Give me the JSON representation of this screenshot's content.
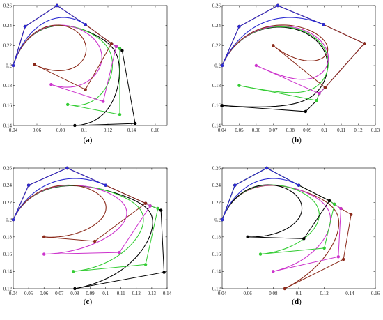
{
  "figure": {
    "captions": [
      "(a)",
      "(b)",
      "(c)",
      "(d)"
    ]
  },
  "chart_data": [
    {
      "panel": "a",
      "type": "line",
      "caption": "(a)",
      "xlim": [
        0.04,
        0.17
      ],
      "ylim": [
        0.14,
        0.26
      ],
      "xticks": [
        "0.04",
        "0.06",
        "0.08",
        "0.1",
        "0.12",
        "0.14",
        "0.16"
      ],
      "xtick_values": [
        0.04,
        0.06,
        0.08,
        0.1,
        0.12,
        0.14,
        0.16
      ],
      "yticks": [
        "0.14",
        "0.16",
        "0.18",
        "0.2",
        "0.22",
        "0.24",
        "0.26"
      ],
      "ytick_values": [
        0.14,
        0.16,
        0.18,
        0.2,
        0.22,
        0.24,
        0.26
      ],
      "series": [
        {
          "color": "#2b2bd1",
          "control": [
            [
              0.04,
              0.2
            ],
            [
              0.05,
              0.239
            ],
            [
              0.077,
              0.26
            ],
            [
              0.101,
              0.241
            ]
          ]
        },
        {
          "color": "#8b2a1a",
          "control": [
            [
              0.04,
              0.2
            ],
            [
              0.05,
              0.239
            ],
            [
              0.077,
              0.26
            ],
            [
              0.101,
              0.241
            ],
            [
              0.123,
              0.222
            ],
            [
              0.101,
              0.176
            ],
            [
              0.058,
              0.201
            ]
          ]
        },
        {
          "color": "#cc33cc",
          "control": [
            [
              0.04,
              0.2
            ],
            [
              0.05,
              0.239
            ],
            [
              0.077,
              0.26
            ],
            [
              0.101,
              0.241
            ],
            [
              0.123,
              0.222
            ],
            [
              0.127,
              0.219
            ],
            [
              0.116,
              0.164
            ],
            [
              0.072,
              0.181
            ]
          ]
        },
        {
          "color": "#33cc33",
          "control": [
            [
              0.04,
              0.2
            ],
            [
              0.05,
              0.239
            ],
            [
              0.077,
              0.26
            ],
            [
              0.101,
              0.241
            ],
            [
              0.123,
              0.222
            ],
            [
              0.127,
              0.219
            ],
            [
              0.13,
              0.217
            ],
            [
              0.13,
              0.151
            ],
            [
              0.086,
              0.161
            ]
          ]
        },
        {
          "color": "#000000",
          "control": [
            [
              0.04,
              0.2
            ],
            [
              0.05,
              0.239
            ],
            [
              0.077,
              0.26
            ],
            [
              0.101,
              0.241
            ],
            [
              0.123,
              0.222
            ],
            [
              0.127,
              0.219
            ],
            [
              0.13,
              0.217
            ],
            [
              0.132,
              0.215
            ],
            [
              0.143,
              0.142
            ],
            [
              0.092,
              0.14
            ]
          ]
        }
      ]
    },
    {
      "panel": "b",
      "type": "line",
      "caption": "(b)",
      "xlim": [
        0.04,
        0.13
      ],
      "ylim": [
        0.14,
        0.26
      ],
      "xticks": [
        "0.04",
        "0.05",
        "0.06",
        "0.07",
        "0.08",
        "0.09",
        "0.1",
        "0.11",
        "0.12",
        "0.13"
      ],
      "xtick_values": [
        0.04,
        0.05,
        0.06,
        0.07,
        0.08,
        0.09,
        0.1,
        0.11,
        0.12,
        0.13
      ],
      "yticks": [
        "0.14",
        "0.16",
        "0.18",
        "0.2",
        "0.22",
        "0.24",
        "0.26"
      ],
      "ytick_values": [
        0.14,
        0.16,
        0.18,
        0.2,
        0.22,
        0.24,
        0.26
      ],
      "series": [
        {
          "color": "#2b2bd1",
          "control": [
            [
              0.04,
              0.2
            ],
            [
              0.05,
              0.239
            ],
            [
              0.0727,
              0.26
            ],
            [
              0.0995,
              0.241
            ]
          ]
        },
        {
          "color": "#8b2a1a",
          "control": [
            [
              0.04,
              0.2
            ],
            [
              0.05,
              0.239
            ],
            [
              0.0727,
              0.26
            ],
            [
              0.0995,
              0.241
            ],
            [
              0.1235,
              0.222
            ],
            [
              0.1005,
              0.178
            ],
            [
              0.07,
              0.22
            ]
          ]
        },
        {
          "color": "#cc33cc",
          "control": [
            [
              0.04,
              0.2
            ],
            [
              0.05,
              0.239
            ],
            [
              0.0727,
              0.26
            ],
            [
              0.0995,
              0.241
            ],
            [
              0.1235,
              0.222
            ],
            [
              0.1005,
              0.178
            ],
            [
              0.097,
              0.172
            ],
            [
              0.06,
              0.2
            ]
          ]
        },
        {
          "color": "#33cc33",
          "control": [
            [
              0.04,
              0.2
            ],
            [
              0.05,
              0.239
            ],
            [
              0.0727,
              0.26
            ],
            [
              0.0995,
              0.241
            ],
            [
              0.1235,
              0.222
            ],
            [
              0.1005,
              0.178
            ],
            [
              0.097,
              0.172
            ],
            [
              0.0955,
              0.165
            ],
            [
              0.05,
              0.18
            ]
          ]
        },
        {
          "color": "#000000",
          "control": [
            [
              0.04,
              0.2
            ],
            [
              0.05,
              0.239
            ],
            [
              0.0727,
              0.26
            ],
            [
              0.0995,
              0.241
            ],
            [
              0.1235,
              0.222
            ],
            [
              0.1005,
              0.178
            ],
            [
              0.097,
              0.172
            ],
            [
              0.0955,
              0.165
            ],
            [
              0.089,
              0.154
            ],
            [
              0.04,
              0.16
            ]
          ]
        }
      ]
    },
    {
      "panel": "c",
      "type": "line",
      "caption": "(c)",
      "xlim": [
        0.04,
        0.14
      ],
      "ylim": [
        0.12,
        0.26
      ],
      "xticks": [
        "0.04",
        "0.05",
        "0.06",
        "0.07",
        "0.08",
        "0.09",
        "0.1",
        "0.11",
        "0.12",
        "0.13",
        "0.14"
      ],
      "xtick_values": [
        0.04,
        0.05,
        0.06,
        0.07,
        0.08,
        0.09,
        0.1,
        0.11,
        0.12,
        0.13,
        0.14
      ],
      "yticks": [
        "0.12",
        "0.14",
        "0.16",
        "0.18",
        "0.2",
        "0.22",
        "0.24",
        "0.26"
      ],
      "ytick_values": [
        0.12,
        0.14,
        0.16,
        0.18,
        0.2,
        0.22,
        0.24,
        0.26
      ],
      "series": [
        {
          "color": "#2b2bd1",
          "control": [
            [
              0.04,
              0.2
            ],
            [
              0.05,
              0.24
            ],
            [
              0.075,
              0.26
            ],
            [
              0.1,
              0.24
            ]
          ]
        },
        {
          "color": "#8b2a1a",
          "control": [
            [
              0.04,
              0.2
            ],
            [
              0.05,
              0.24
            ],
            [
              0.075,
              0.26
            ],
            [
              0.1,
              0.24
            ],
            [
              0.126,
              0.219
            ],
            [
              0.093,
              0.175
            ],
            [
              0.06,
              0.18
            ]
          ]
        },
        {
          "color": "#cc33cc",
          "control": [
            [
              0.04,
              0.2
            ],
            [
              0.05,
              0.24
            ],
            [
              0.075,
              0.26
            ],
            [
              0.1,
              0.24
            ],
            [
              0.126,
              0.219
            ],
            [
              0.129,
              0.216
            ],
            [
              0.109,
              0.162
            ],
            [
              0.06,
              0.16
            ]
          ]
        },
        {
          "color": "#33cc33",
          "control": [
            [
              0.04,
              0.2
            ],
            [
              0.05,
              0.24
            ],
            [
              0.075,
              0.26
            ],
            [
              0.1,
              0.24
            ],
            [
              0.126,
              0.219
            ],
            [
              0.129,
              0.216
            ],
            [
              0.134,
              0.213
            ],
            [
              0.126,
              0.148
            ],
            [
              0.079,
              0.14
            ]
          ]
        },
        {
          "color": "#000000",
          "control": [
            [
              0.04,
              0.2
            ],
            [
              0.05,
              0.24
            ],
            [
              0.075,
              0.26
            ],
            [
              0.1,
              0.24
            ],
            [
              0.126,
              0.219
            ],
            [
              0.129,
              0.216
            ],
            [
              0.134,
              0.213
            ],
            [
              0.136,
              0.211
            ],
            [
              0.138,
              0.139
            ],
            [
              0.08,
              0.12
            ]
          ]
        }
      ]
    },
    {
      "panel": "d",
      "type": "line",
      "caption": "(d)",
      "xlim": [
        0.04,
        0.16
      ],
      "ylim": [
        0.12,
        0.26
      ],
      "xticks": [
        "0.04",
        "0.06",
        "0.08",
        "0.1",
        "0.12",
        "0.14",
        "0.16"
      ],
      "xtick_values": [
        0.04,
        0.06,
        0.08,
        0.1,
        0.12,
        0.14,
        0.16
      ],
      "yticks": [
        "0.12",
        "0.14",
        "0.16",
        "0.18",
        "0.2",
        "0.22",
        "0.24",
        "0.26"
      ],
      "ytick_values": [
        0.12,
        0.14,
        0.16,
        0.18,
        0.2,
        0.22,
        0.24,
        0.26
      ],
      "series": [
        {
          "color": "#2b2bd1",
          "control": [
            [
              0.04,
              0.2
            ],
            [
              0.05,
              0.24
            ],
            [
              0.075,
              0.26
            ],
            [
              0.1,
              0.24
            ]
          ]
        },
        {
          "color": "#000000",
          "control": [
            [
              0.04,
              0.2
            ],
            [
              0.05,
              0.24
            ],
            [
              0.075,
              0.26
            ],
            [
              0.1,
              0.24
            ],
            [
              0.124,
              0.222
            ],
            [
              0.104,
              0.178
            ],
            [
              0.06,
              0.18
            ]
          ]
        },
        {
          "color": "#33cc33",
          "control": [
            [
              0.04,
              0.2
            ],
            [
              0.05,
              0.24
            ],
            [
              0.075,
              0.26
            ],
            [
              0.1,
              0.24
            ],
            [
              0.124,
              0.222
            ],
            [
              0.128,
              0.218
            ],
            [
              0.12,
              0.167
            ],
            [
              0.07,
              0.16
            ]
          ]
        },
        {
          "color": "#cc33cc",
          "control": [
            [
              0.04,
              0.2
            ],
            [
              0.05,
              0.24
            ],
            [
              0.075,
              0.26
            ],
            [
              0.1,
              0.24
            ],
            [
              0.124,
              0.222
            ],
            [
              0.128,
              0.218
            ],
            [
              0.133,
              0.213
            ],
            [
              0.131,
              0.157
            ],
            [
              0.08,
              0.14
            ]
          ]
        },
        {
          "color": "#8b2a1a",
          "control": [
            [
              0.04,
              0.2
            ],
            [
              0.05,
              0.24
            ],
            [
              0.075,
              0.26
            ],
            [
              0.1,
              0.24
            ],
            [
              0.124,
              0.222
            ],
            [
              0.128,
              0.218
            ],
            [
              0.133,
              0.213
            ],
            [
              0.141,
              0.206
            ],
            [
              0.135,
              0.154
            ],
            [
              0.089,
              0.12
            ]
          ]
        }
      ]
    }
  ]
}
